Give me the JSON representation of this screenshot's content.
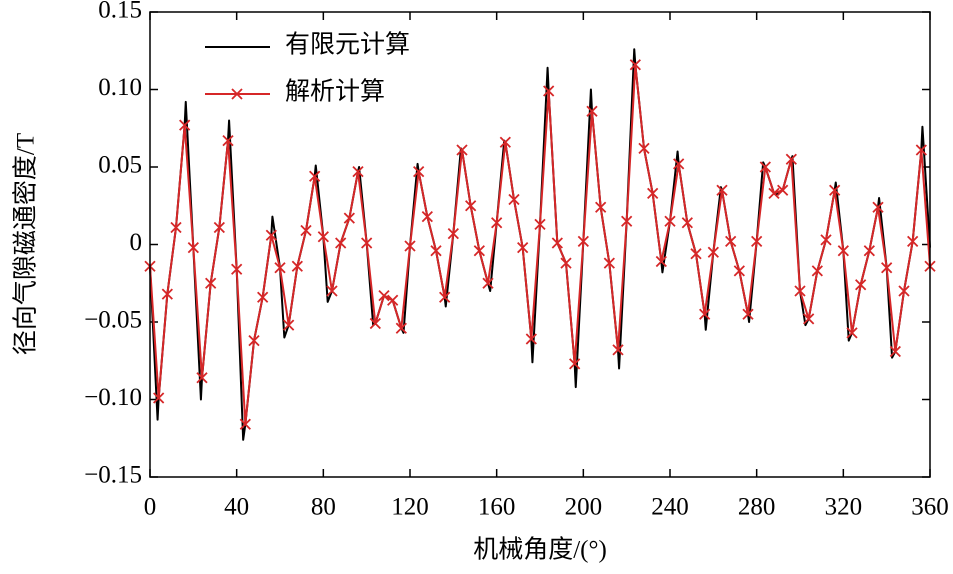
{
  "chart_data": {
    "type": "line",
    "xlabel": "机械角度/(°)",
    "ylabel": "径向气隙磁通密度/T",
    "xlim": [
      0,
      360
    ],
    "xticks": [
      0,
      40,
      80,
      120,
      160,
      200,
      240,
      280,
      320,
      360
    ],
    "ylim": [
      -0.15,
      0.15
    ],
    "yticks": [
      {
        "value": -0.15,
        "label": "−0.15"
      },
      {
        "value": -0.1,
        "label": "−0.10"
      },
      {
        "value": -0.05,
        "label": "−0.05"
      },
      0,
      0.05,
      {
        "value": 0.1,
        "label": "0.10"
      },
      0.15
    ],
    "legend": "upper left",
    "series": [
      {
        "name": "有限元计算",
        "color": "#000000",
        "marker": "none",
        "x": [
          0,
          3.5,
          4,
          8,
          12,
          16,
          16.5,
          20,
          23.5,
          24,
          28,
          32,
          36,
          36.5,
          40,
          43,
          44,
          48,
          52,
          56,
          56.5,
          60,
          62,
          64,
          68,
          72,
          76,
          76.5,
          80,
          82,
          84,
          88,
          92,
          96,
          96.5,
          100,
          103,
          104,
          108,
          112,
          116,
          117,
          120,
          123.5,
          124,
          128,
          132,
          136,
          136.5,
          140,
          143.5,
          144,
          148,
          152,
          156,
          157,
          160,
          163.5,
          164,
          168,
          172,
          176,
          176.5,
          180,
          183.5,
          184,
          188,
          192,
          196,
          196.5,
          200,
          203.5,
          204,
          208,
          212,
          216,
          216.5,
          220,
          223.5,
          224,
          228,
          232,
          236,
          236.5,
          240,
          243.5,
          244,
          248,
          252,
          256,
          256.5,
          260,
          263.5,
          264,
          268,
          272,
          276,
          276.5,
          280,
          283,
          284,
          288,
          289,
          292,
          296,
          296.5,
          300,
          302.5,
          304,
          308,
          312,
          316,
          316.5,
          320,
          322.5,
          324,
          328,
          332,
          336,
          336.5,
          340,
          342.5,
          344,
          348,
          352,
          356,
          356.5,
          360
        ],
        "values": [
          -0.014,
          -0.113,
          -0.099,
          -0.032,
          0.011,
          0.077,
          0.092,
          -0.002,
          -0.1,
          -0.086,
          -0.025,
          0.011,
          0.067,
          0.08,
          -0.016,
          -0.126,
          -0.116,
          -0.062,
          -0.034,
          0.006,
          0.018,
          -0.015,
          -0.06,
          -0.052,
          -0.014,
          0.009,
          0.044,
          0.051,
          0.005,
          -0.037,
          -0.03,
          0.001,
          0.017,
          0.047,
          0.05,
          0.001,
          -0.052,
          -0.051,
          -0.033,
          -0.036,
          -0.054,
          -0.057,
          -0.001,
          0.052,
          0.047,
          0.018,
          -0.004,
          -0.034,
          -0.04,
          0.007,
          0.062,
          0.061,
          0.025,
          -0.004,
          -0.025,
          -0.03,
          0.014,
          0.067,
          0.066,
          0.029,
          -0.002,
          -0.061,
          -0.076,
          0.013,
          0.114,
          0.099,
          0.001,
          -0.012,
          -0.077,
          -0.092,
          0.002,
          0.1,
          0.086,
          0.024,
          -0.012,
          -0.068,
          -0.08,
          0.015,
          0.126,
          0.116,
          0.062,
          0.033,
          -0.011,
          -0.018,
          0.015,
          0.06,
          0.052,
          0.014,
          -0.006,
          -0.045,
          -0.055,
          -0.005,
          0.037,
          0.035,
          0.002,
          -0.017,
          -0.045,
          -0.05,
          0.002,
          0.053,
          0.05,
          0.033,
          0.032,
          0.035,
          0.055,
          0.057,
          -0.03,
          -0.052,
          -0.048,
          -0.017,
          0.003,
          0.035,
          0.04,
          -0.004,
          -0.062,
          -0.057,
          -0.026,
          -0.004,
          0.024,
          0.03,
          -0.015,
          -0.073,
          -0.069,
          -0.03,
          0.002,
          0.061,
          0.076,
          -0.002
        ]
      },
      {
        "name": "解析计算",
        "color": "#d62728",
        "marker": "x",
        "x": [
          0,
          4,
          8,
          12,
          16,
          20,
          24,
          28,
          32,
          36,
          40,
          44,
          48,
          52,
          56,
          60,
          64,
          68,
          72,
          76,
          80,
          84,
          88,
          92,
          96,
          100,
          104,
          108,
          112,
          116,
          120,
          124,
          128,
          132,
          136,
          140,
          144,
          148,
          152,
          156,
          160,
          164,
          168,
          172,
          176,
          180,
          184,
          188,
          192,
          196,
          200,
          204,
          208,
          212,
          216,
          220,
          224,
          228,
          232,
          236,
          240,
          244,
          248,
          252,
          256,
          260,
          264,
          268,
          272,
          276,
          280,
          284,
          288,
          292,
          296,
          300,
          304,
          308,
          312,
          316,
          320,
          324,
          328,
          332,
          336,
          340,
          344,
          348,
          352,
          356,
          360
        ],
        "values": [
          -0.014,
          -0.099,
          -0.032,
          0.011,
          0.077,
          -0.002,
          -0.086,
          -0.025,
          0.011,
          0.067,
          -0.016,
          -0.116,
          -0.062,
          -0.034,
          0.006,
          -0.015,
          -0.052,
          -0.014,
          0.009,
          0.044,
          0.005,
          -0.03,
          0.001,
          0.017,
          0.047,
          0.001,
          -0.051,
          -0.033,
          -0.036,
          -0.054,
          -0.001,
          0.047,
          0.018,
          -0.004,
          -0.034,
          0.007,
          0.061,
          0.025,
          -0.004,
          -0.025,
          0.014,
          0.066,
          0.029,
          -0.002,
          -0.061,
          0.013,
          0.099,
          0.001,
          -0.012,
          -0.077,
          0.002,
          0.086,
          0.024,
          -0.012,
          -0.068,
          0.015,
          0.116,
          0.062,
          0.033,
          -0.011,
          0.015,
          0.052,
          0.014,
          -0.006,
          -0.045,
          -0.005,
          0.035,
          0.002,
          -0.017,
          -0.045,
          0.002,
          0.05,
          0.033,
          0.035,
          0.055,
          -0.03,
          -0.048,
          -0.017,
          0.003,
          0.035,
          -0.004,
          -0.057,
          -0.026,
          -0.004,
          0.024,
          -0.015,
          -0.069,
          -0.03,
          0.002,
          0.061,
          -0.014
        ]
      }
    ]
  }
}
